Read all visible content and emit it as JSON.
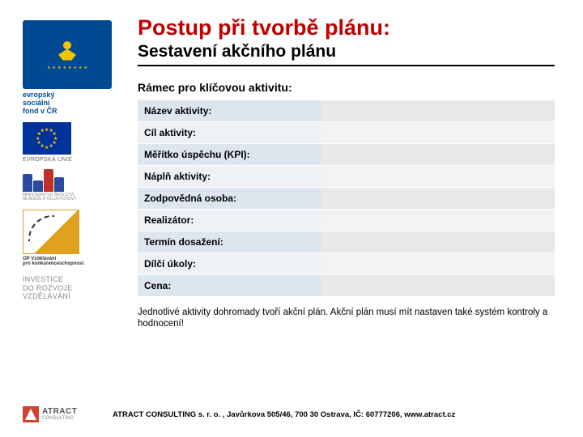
{
  "sidebar": {
    "esf": {
      "label": "evropský\nsociální\nfond v ČR"
    },
    "eu_label": "EVROPSKÁ UNIE",
    "msmt_label": "MINISTERSTVO ŠKOLSTVÍ,\nMLÁDEŽE A TĚLOVÝCHOVY",
    "msmt_colors": [
      "#2a4aa0",
      "#2a4aa0",
      "#c03028",
      "#2a4aa0"
    ],
    "msmt_heights": [
      22,
      14,
      28,
      18
    ],
    "op_label": "OP Vzdělávání\npro konkurenceschopnost",
    "investice": "INVESTICE\nDO ROZVOJE\nVZDĚLÁVÁNÍ"
  },
  "title": "Postup při tvorbě plánu:",
  "subtitle": "Sestavení akčního plánu",
  "section_head": "Rámec pro klíčovou aktivitu:",
  "rows": [
    {
      "label": "Název aktivity:",
      "value": ""
    },
    {
      "label": "Cíl aktivity:",
      "value": ""
    },
    {
      "label": "Měřítko úspěchu (KPI):",
      "value": ""
    },
    {
      "label": "Náplň aktivity:",
      "value": ""
    },
    {
      "label": "Zodpovědná osoba:",
      "value": ""
    },
    {
      "label": "Realizátor:",
      "value": ""
    },
    {
      "label": "Termín dosažení:",
      "value": ""
    },
    {
      "label": "Dílčí úkoly:",
      "value": ""
    },
    {
      "label": "Cena:",
      "value": ""
    }
  ],
  "note": "Jednotlivé aktivity dohromady tvoří akční plán. Akční plán musí mít nastaven také systém kontroly a hodnocení!",
  "footer": {
    "brand": "ATRACT",
    "brand_sub": "CONSULTING",
    "text": "ATRACT CONSULTING s. r. o. , Javůrkova 505/46, 700 30 Ostrava, IČ: 60777206, www.atract.cz"
  },
  "colors": {
    "title": "#c00000",
    "esf_bg": "#004a93",
    "eu_bg": "#003399",
    "star": "#ffcc00"
  }
}
